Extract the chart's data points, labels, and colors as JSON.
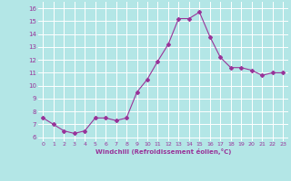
{
  "x": [
    0,
    1,
    2,
    3,
    4,
    5,
    6,
    7,
    8,
    9,
    10,
    11,
    12,
    13,
    14,
    15,
    16,
    17,
    18,
    19,
    20,
    21,
    22,
    23
  ],
  "y": [
    7.5,
    7.0,
    6.5,
    6.3,
    6.5,
    7.5,
    7.5,
    7.3,
    7.5,
    9.5,
    10.5,
    11.9,
    13.2,
    15.2,
    15.2,
    15.7,
    13.8,
    12.2,
    11.4,
    11.4,
    11.2,
    10.8,
    11.0,
    11.0
  ],
  "line_color": "#993399",
  "marker": "D",
  "marker_size": 2,
  "bg_color": "#b3e6e6",
  "grid_color": "#ffffff",
  "xlabel": "Windchill (Refroidissement éolien,°C)",
  "xlabel_color": "#993399",
  "tick_color": "#993399",
  "ytick_labels": [
    "6",
    "7",
    "8",
    "9",
    "10",
    "11",
    "12",
    "13",
    "14",
    "15",
    "16"
  ],
  "ytick_values": [
    6,
    7,
    8,
    9,
    10,
    11,
    12,
    13,
    14,
    15,
    16
  ],
  "ylim": [
    5.7,
    16.5
  ],
  "xlim": [
    -0.5,
    23.5
  ]
}
